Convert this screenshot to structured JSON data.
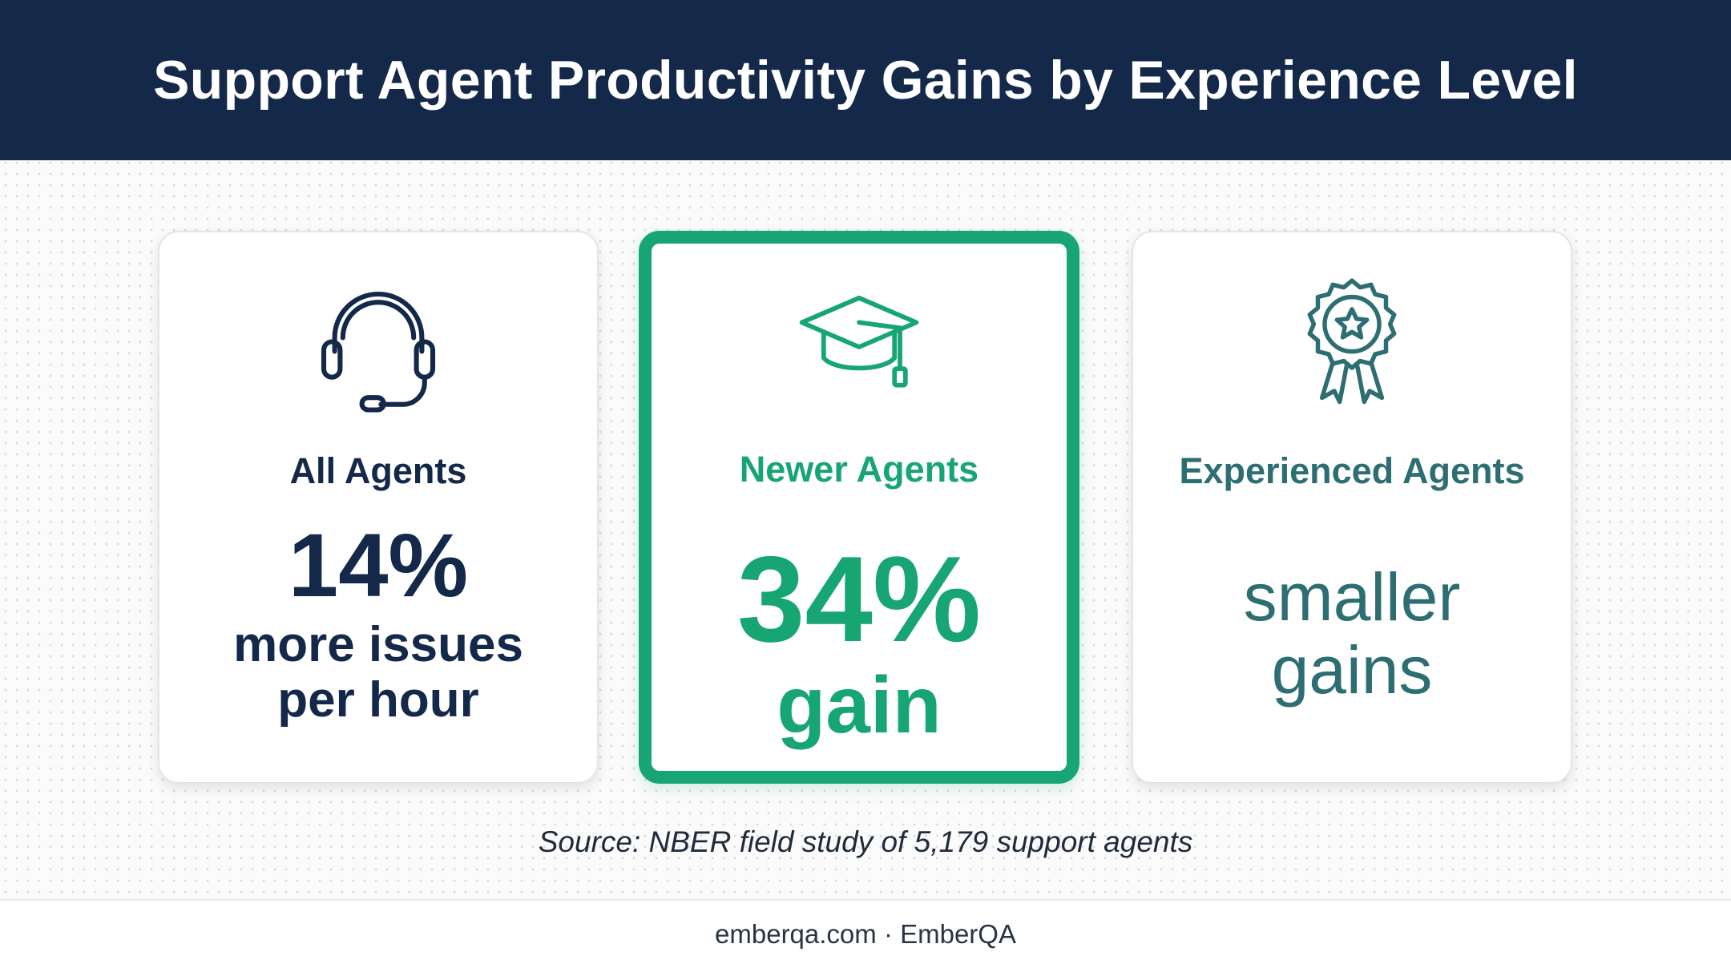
{
  "header": {
    "title": "Support Agent Productivity Gains by Experience Level"
  },
  "cards": [
    {
      "label": "All Agents",
      "value": "14%",
      "description": "more issues per hour"
    },
    {
      "label": "Newer Agents",
      "value": "34%",
      "description": "gain"
    },
    {
      "label": "Experienced Agents",
      "description": "smaller gains"
    }
  ],
  "source": "Source: NBER field study of 5,179 support agents",
  "footer": "emberqa.com · EmberQA"
}
